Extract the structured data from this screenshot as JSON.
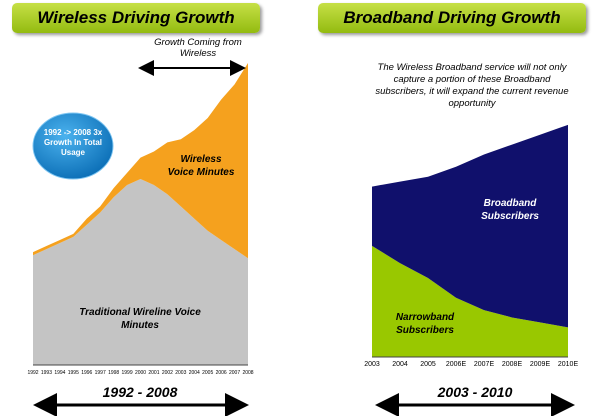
{
  "chart_data": [
    {
      "type": "area",
      "title": "Wireless Driving Growth",
      "categories": [
        "1992",
        "1993",
        "1994",
        "1995",
        "1996",
        "1997",
        "1998",
        "1999",
        "2000",
        "2001",
        "2002",
        "2003",
        "2004",
        "2005",
        "2006",
        "2007",
        "2008"
      ],
      "series": [
        {
          "name": "Traditional Wireline Voice Minutes",
          "color": "#c4c4c4",
          "values": [
            36,
            38,
            40,
            42,
            46,
            50,
            55,
            59,
            61,
            59,
            56,
            52,
            48,
            44,
            41,
            38,
            35
          ]
        },
        {
          "name": "Wireless Voice Minutes",
          "color": "#f5a11e",
          "values": [
            1,
            1,
            1,
            1,
            2,
            2,
            3,
            4,
            7,
            11,
            17,
            22,
            29,
            37,
            46,
            54,
            64
          ]
        }
      ],
      "ylim": [
        0,
        100
      ],
      "arrow_label": "Growth Coming from Wireless",
      "callout": "1992 -> 2008 3x Growth In Total Usage",
      "period": "1992 - 2008"
    },
    {
      "type": "area",
      "title": "Broadband Driving Growth",
      "categories": [
        "2003",
        "2004",
        "2005",
        "2006E",
        "2007E",
        "2008E",
        "2009E",
        "2010E"
      ],
      "series": [
        {
          "name": "Narrowband Subscribers",
          "color": "#99c800",
          "values": [
            45,
            38,
            32,
            24,
            19,
            16,
            14,
            12
          ]
        },
        {
          "name": "Broadband Subscribers",
          "color": "#10106c",
          "values": [
            24,
            33,
            41,
            53,
            63,
            70,
            76,
            82
          ]
        }
      ],
      "ylim": [
        0,
        100
      ],
      "annotation": "The Wireless Broadband service will not only capture a portion of these Broadband subscribers, it will expand the current revenue opportunity",
      "period": "2003 - 2010"
    }
  ]
}
